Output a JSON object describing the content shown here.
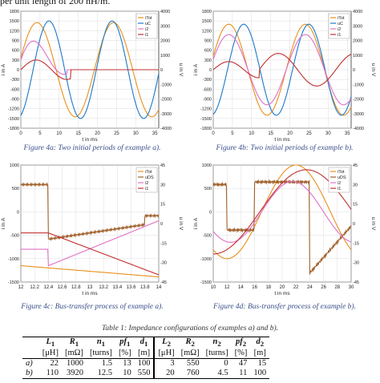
{
  "intro_text": "per unit length of 200 nH/m.",
  "figures": [
    {
      "id": "4a",
      "caption": "Figure 4a: Two initial periods of example a).",
      "xlabel": "t in ms",
      "ylabel_left": "i in A",
      "ylabel_right": "u in V",
      "xlim": [
        0,
        36
      ],
      "xticks": [
        0,
        5,
        10,
        15,
        20,
        25,
        30,
        35
      ],
      "ylim_left": [
        -1800,
        1800
      ],
      "yticks_left": [
        -1800,
        -1500,
        -1200,
        -900,
        -600,
        -300,
        0,
        300,
        600,
        900,
        1200,
        1500,
        1800
      ],
      "ylim_right": [
        -4000,
        4000
      ],
      "yticks_right": [
        -4000,
        -3000,
        -2000,
        -1000,
        0,
        1000,
        2000,
        3000,
        4000
      ],
      "legend": [
        "iTot",
        "uC",
        "i2",
        "i1"
      ],
      "colors": {
        "iTot": "#e8901c",
        "uC": "#1e78c8",
        "i2": "#e070c8",
        "i1": "#c03030"
      }
    },
    {
      "id": "4b",
      "caption": "Figure 4b: Two initial periods of example b).",
      "xlabel": "t in ms",
      "ylabel_left": "i in A",
      "ylabel_right": "u in V",
      "xlim": [
        0,
        36
      ],
      "xticks": [
        0,
        5,
        10,
        15,
        20,
        25,
        30,
        35
      ],
      "ylim_left": [
        -1800,
        1800
      ],
      "yticks_left": [
        -1800,
        -1500,
        -1200,
        -900,
        -600,
        -300,
        0,
        300,
        600,
        900,
        1200,
        1500,
        1800
      ],
      "ylim_right": [
        -4000,
        4000
      ],
      "yticks_right": [
        -4000,
        -3000,
        -2000,
        -1000,
        0,
        1000,
        2000,
        3000,
        4000
      ],
      "legend": [
        "iTot",
        "uC",
        "i2",
        "i1"
      ],
      "colors": {
        "iTot": "#e8901c",
        "uC": "#1e78c8",
        "i2": "#e070c8",
        "i1": "#c03030"
      }
    },
    {
      "id": "4c",
      "caption": "Figure 4c: Bus-transfer process of example a).",
      "xlabel": "t in ms",
      "ylabel_left": "i in A",
      "ylabel_right": "u in V",
      "xlim": [
        12,
        14
      ],
      "xticks": [
        12,
        12.2,
        12.4,
        12.6,
        12.8,
        13,
        13.2,
        13.4,
        13.6,
        13.8,
        14
      ],
      "ylim_left": [
        -1500,
        1000
      ],
      "yticks_left": [
        -1500,
        -1000,
        -500,
        0,
        500,
        1000
      ],
      "ylim_right": [
        -45,
        45
      ],
      "yticks_right": [
        -45,
        -30,
        -15,
        0,
        15,
        30,
        45
      ],
      "legend": [
        "iTot",
        "uDS",
        "i2",
        "i1"
      ],
      "colors": {
        "iTot": "#e8901c",
        "uDS": "#a0602a",
        "i2": "#e070c8",
        "i1": "#c03030"
      }
    },
    {
      "id": "4d",
      "caption": "Figure 4d: Bus-transfer process of example b).",
      "xlabel": "t in ms",
      "ylabel_left": "i in A",
      "ylabel_right": "u in V",
      "xlim": [
        10,
        30
      ],
      "xticks": [
        10,
        12,
        14,
        16,
        18,
        20,
        22,
        24,
        26,
        28,
        30
      ],
      "ylim_left": [
        -1500,
        1000
      ],
      "yticks_left": [
        -1500,
        -1000,
        -500,
        0,
        500,
        1000
      ],
      "ylim_right": [
        -45,
        45
      ],
      "yticks_right": [
        -45,
        -30,
        -15,
        0,
        15,
        30,
        45
      ],
      "legend": [
        "iTot",
        "uDS",
        "i2",
        "i1"
      ],
      "colors": {
        "iTot": "#e8901c",
        "uDS": "#a0602a",
        "i2": "#e070c8",
        "i1": "#c03030"
      }
    }
  ],
  "table": {
    "caption": "Table 1: Impedance configurations of examples a) and b).",
    "headers": [
      {
        "sym": "L",
        "sub": "1",
        "unit": "[μH]"
      },
      {
        "sym": "R",
        "sub": "1",
        "unit": "[mΩ]"
      },
      {
        "sym": "n",
        "sub": "1",
        "unit": "[turns]"
      },
      {
        "sym": "pf",
        "sub": "1",
        "unit": "[%]"
      },
      {
        "sym": "d",
        "sub": "1",
        "unit": "[m]"
      },
      {
        "sym": "L",
        "sub": "2",
        "unit": "[μH]"
      },
      {
        "sym": "R",
        "sub": "2",
        "unit": "[mΩ]"
      },
      {
        "sym": "n",
        "sub": "2",
        "unit": "[turns]"
      },
      {
        "sym": "pf",
        "sub": "2",
        "unit": "[%]"
      },
      {
        "sym": "d",
        "sub": "2",
        "unit": "[m]"
      }
    ],
    "rows": [
      {
        "label": "a)",
        "values": [
          "22",
          "1000",
          "1.5",
          "13",
          "100",
          "3",
          "550",
          "0",
          "47",
          "15"
        ]
      },
      {
        "label": "b)",
        "values": [
          "110",
          "3920",
          "12.5",
          "10",
          "550",
          "20",
          "760",
          "4.5",
          "11",
          "100"
        ]
      }
    ]
  }
}
